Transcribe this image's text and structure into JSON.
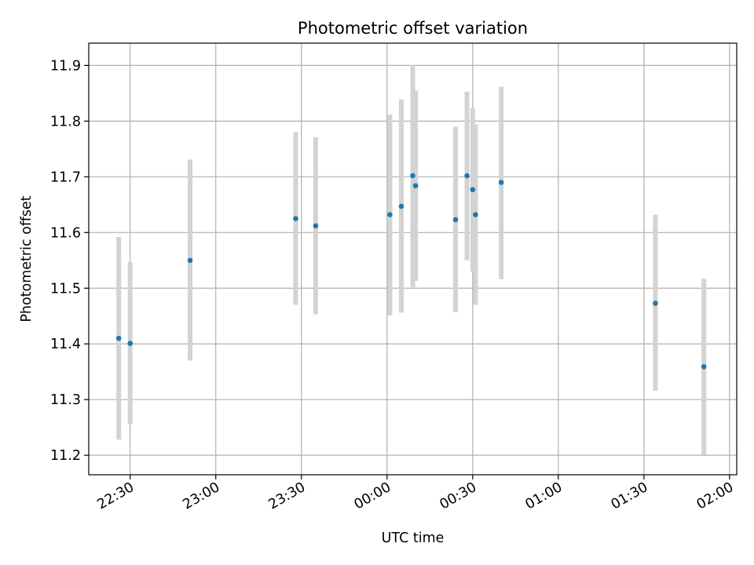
{
  "chart_data": {
    "type": "scatter",
    "title": "Photometric offset variation",
    "xlabel": "UTC time",
    "ylabel": "Photometric offset",
    "grid": true,
    "legend": "none",
    "colors": {
      "point": "#1f77b4",
      "errorbar": "#d3d3d3",
      "grid": "#b0b0b0",
      "axis": "#000000"
    },
    "xlim": [
      "22:15:30",
      "02:02:30"
    ],
    "ylim": [
      11.165,
      11.94
    ],
    "x_ticks": [
      "22:30",
      "23:00",
      "23:30",
      "00:00",
      "00:30",
      "01:00",
      "01:30",
      "02:00"
    ],
    "y_ticks": [
      "11.2",
      "11.3",
      "11.4",
      "11.5",
      "11.6",
      "11.7",
      "11.8",
      "11.9"
    ],
    "points": [
      {
        "x": "22:26",
        "y": 11.41,
        "ylow": 11.228,
        "yhigh": 11.592
      },
      {
        "x": "22:30",
        "y": 11.401,
        "ylow": 11.256,
        "yhigh": 11.547
      },
      {
        "x": "22:51",
        "y": 11.55,
        "ylow": 11.37,
        "yhigh": 11.731
      },
      {
        "x": "23:28",
        "y": 11.625,
        "ylow": 11.47,
        "yhigh": 11.78
      },
      {
        "x": "23:35",
        "y": 11.612,
        "ylow": 11.453,
        "yhigh": 11.771
      },
      {
        "x": "00:01",
        "y": 11.632,
        "ylow": 11.451,
        "yhigh": 11.812
      },
      {
        "x": "00:05",
        "y": 11.647,
        "ylow": 11.456,
        "yhigh": 11.839
      },
      {
        "x": "00:09",
        "y": 11.702,
        "ylow": 11.502,
        "yhigh": 11.901
      },
      {
        "x": "00:10",
        "y": 11.684,
        "ylow": 11.513,
        "yhigh": 11.855
      },
      {
        "x": "00:24",
        "y": 11.623,
        "ylow": 11.457,
        "yhigh": 11.79
      },
      {
        "x": "00:28",
        "y": 11.702,
        "ylow": 11.55,
        "yhigh": 11.853
      },
      {
        "x": "00:30",
        "y": 11.677,
        "ylow": 11.53,
        "yhigh": 11.823
      },
      {
        "x": "00:31",
        "y": 11.632,
        "ylow": 11.47,
        "yhigh": 11.794
      },
      {
        "x": "00:40",
        "y": 11.69,
        "ylow": 11.516,
        "yhigh": 11.862
      },
      {
        "x": "01:34",
        "y": 11.473,
        "ylow": 11.316,
        "yhigh": 11.632
      },
      {
        "x": "01:51",
        "y": 11.359,
        "ylow": 11.201,
        "yhigh": 11.517
      }
    ]
  }
}
